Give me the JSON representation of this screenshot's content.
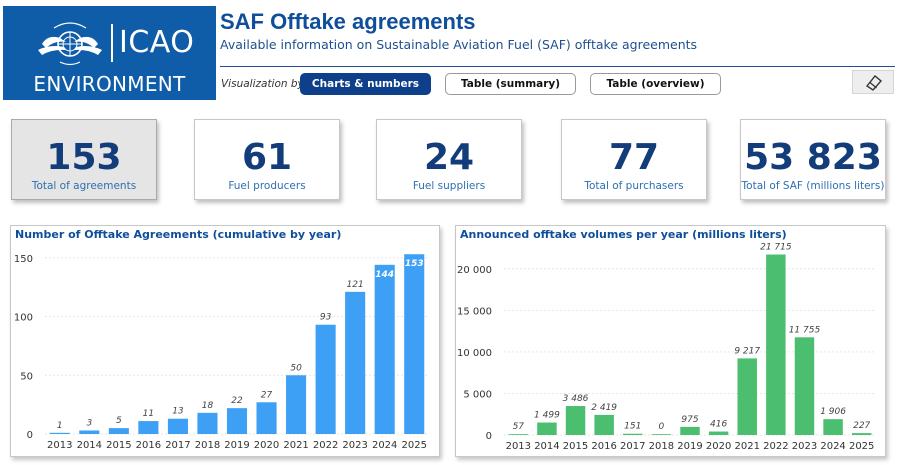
{
  "logo": {
    "icao": "ICAO",
    "environment": "ENVIRONMENT"
  },
  "header": {
    "title": "SAF Offtake agreements",
    "subtitle": "Available information on Sustainable Aviation Fuel (SAF) offtake agreements"
  },
  "viz": {
    "label": "Visualization by:",
    "buttons": [
      "Charts & numbers",
      "Table (summary)",
      "Table (overview)"
    ],
    "active": 0
  },
  "kpis": [
    {
      "value": "153",
      "label": "Total of agreements"
    },
    {
      "value": "61",
      "label": "Fuel producers"
    },
    {
      "value": "24",
      "label": "Fuel suppliers"
    },
    {
      "value": "77",
      "label": "Total of purchasers"
    },
    {
      "value": "53 823",
      "label": "Total of SAF (millions liters)"
    }
  ],
  "colors": {
    "blue_bar": "#3ea0f5",
    "green_bar": "#4cbe6f",
    "brand": "#0f5ca8"
  },
  "chart_data": [
    {
      "type": "bar",
      "title": "Number of Offtake Agreements (cumulative by year)",
      "categories": [
        "2013",
        "2014",
        "2015",
        "2016",
        "2017",
        "2018",
        "2019",
        "2020",
        "2021",
        "2022",
        "2023",
        "2024",
        "2025"
      ],
      "values": [
        1,
        3,
        5,
        11,
        13,
        18,
        22,
        27,
        50,
        93,
        121,
        144,
        153
      ],
      "labels": [
        "1",
        "3",
        "5",
        "11",
        "13",
        "18",
        "22",
        "27",
        "50",
        "93",
        "121",
        "144",
        "153"
      ],
      "ylim": [
        0,
        160
      ],
      "yticks": [
        0,
        50,
        100,
        150
      ],
      "ytick_labels": [
        "0",
        "50",
        "100",
        "150"
      ],
      "grid": true
    },
    {
      "type": "bar",
      "title": "Announced offtake volumes per year (millions liters)",
      "categories": [
        "2013",
        "2014",
        "2015",
        "2016",
        "2017",
        "2018",
        "2019",
        "2020",
        "2021",
        "2022",
        "2023",
        "2024",
        "2025"
      ],
      "values": [
        57,
        1499,
        3486,
        2419,
        151,
        0,
        975,
        416,
        9217,
        21715,
        11755,
        1906,
        227
      ],
      "labels": [
        "57",
        "1 499",
        "3 486",
        "2 419",
        "151",
        "0",
        "975",
        "416",
        "9 217",
        "21 715",
        "11 755",
        "1 906",
        "227"
      ],
      "ylim": [
        0,
        22500
      ],
      "yticks": [
        0,
        5000,
        10000,
        15000,
        20000
      ],
      "ytick_labels": [
        "0",
        "5 000",
        "10 000",
        "15 000",
        "20 000"
      ],
      "grid": true
    }
  ]
}
